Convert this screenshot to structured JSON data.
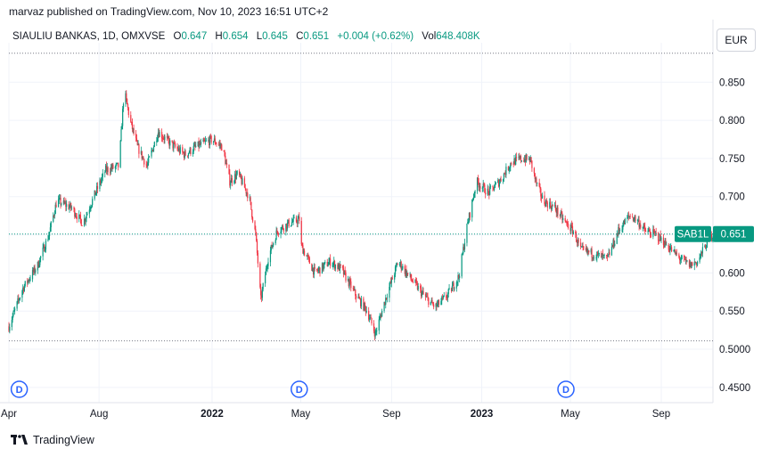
{
  "header": {
    "published_text": "marvaz published on TradingView.com, Nov 10, 2023 16:51 UTC+2"
  },
  "legend": {
    "symbol_text": "SIAULIU BANKAS, 1D, OMXVSE",
    "open_label": "O",
    "open": "0.647",
    "high_label": "H",
    "high": "0.654",
    "low_label": "L",
    "low": "0.645",
    "close_label": "C",
    "close": "0.651",
    "change": "+0.004 (+0.62%)",
    "vol_label": "Vol",
    "vol": "648.408K"
  },
  "currency_button": "EUR",
  "footer": {
    "brand": "TradingView"
  },
  "colors": {
    "up": "#089981",
    "down": "#f23645",
    "grid": "#f0f3fa",
    "dotted": "#787b86"
  },
  "chart_data": {
    "type": "candlestick",
    "symbol": "SAB1L",
    "y_ticks": [
      0.45,
      0.5,
      0.55,
      0.6,
      0.65,
      0.7,
      0.75,
      0.8,
      0.85
    ],
    "y_tick_labels": [
      "0.4500",
      "0.5000",
      "0.550",
      "0.600",
      "0.650",
      "0.700",
      "0.750",
      "0.800",
      "0.850"
    ],
    "ylim": [
      0.43,
      0.89
    ],
    "x_ticks": [
      {
        "label": "Apr",
        "date": "2021-04-01"
      },
      {
        "label": "Aug",
        "date": "2021-08-01"
      },
      {
        "label": "2022",
        "date": "2022-01-01"
      },
      {
        "label": "May",
        "date": "2022-05-01"
      },
      {
        "label": "Sep",
        "date": "2022-09-01"
      },
      {
        "label": "2023",
        "date": "2023-01-01"
      },
      {
        "label": "May",
        "date": "2023-05-01"
      },
      {
        "label": "Sep",
        "date": "2023-09-01"
      }
    ],
    "xlim": [
      "2021-04-01",
      "2023-11-10"
    ],
    "high_line": 0.888,
    "low_line": 0.511,
    "last_price": 0.651,
    "last_label": "SAB1L",
    "last_value_label": "0.651",
    "dividend_markers": [
      {
        "label": "D",
        "date": "2021-04-15"
      },
      {
        "label": "D",
        "date": "2022-04-29"
      },
      {
        "label": "D",
        "date": "2023-04-25"
      }
    ],
    "path": [
      [
        "2021-04-01",
        0.53
      ],
      [
        "2021-04-20",
        0.58
      ],
      [
        "2021-05-10",
        0.61
      ],
      [
        "2021-05-25",
        0.65
      ],
      [
        "2021-06-05",
        0.695
      ],
      [
        "2021-06-25",
        0.685
      ],
      [
        "2021-07-10",
        0.665
      ],
      [
        "2021-07-25",
        0.7
      ],
      [
        "2021-08-10",
        0.735
      ],
      [
        "2021-08-28",
        0.74
      ],
      [
        "2021-09-04",
        0.84
      ],
      [
        "2021-09-12",
        0.8
      ],
      [
        "2021-09-22",
        0.765
      ],
      [
        "2021-10-05",
        0.74
      ],
      [
        "2021-10-20",
        0.785
      ],
      [
        "2021-11-05",
        0.77
      ],
      [
        "2021-11-25",
        0.755
      ],
      [
        "2021-12-10",
        0.765
      ],
      [
        "2022-01-01",
        0.775
      ],
      [
        "2022-01-15",
        0.765
      ],
      [
        "2022-01-25",
        0.72
      ],
      [
        "2022-02-05",
        0.73
      ],
      [
        "2022-02-20",
        0.7
      ],
      [
        "2022-03-01",
        0.65
      ],
      [
        "2022-03-08",
        0.565
      ],
      [
        "2022-03-18",
        0.62
      ],
      [
        "2022-03-30",
        0.655
      ],
      [
        "2022-04-15",
        0.665
      ],
      [
        "2022-04-29",
        0.67
      ],
      [
        "2022-05-02",
        0.635
      ],
      [
        "2022-05-20",
        0.6
      ],
      [
        "2022-06-10",
        0.615
      ],
      [
        "2022-06-25",
        0.605
      ],
      [
        "2022-07-15",
        0.57
      ],
      [
        "2022-07-30",
        0.55
      ],
      [
        "2022-08-10",
        0.52
      ],
      [
        "2022-08-25",
        0.57
      ],
      [
        "2022-09-10",
        0.615
      ],
      [
        "2022-09-25",
        0.595
      ],
      [
        "2022-10-15",
        0.57
      ],
      [
        "2022-10-30",
        0.555
      ],
      [
        "2022-11-15",
        0.57
      ],
      [
        "2022-12-01",
        0.595
      ],
      [
        "2022-12-12",
        0.66
      ],
      [
        "2022-12-25",
        0.72
      ],
      [
        "2023-01-10",
        0.705
      ],
      [
        "2023-01-25",
        0.72
      ],
      [
        "2023-02-10",
        0.745
      ],
      [
        "2023-02-25",
        0.75
      ],
      [
        "2023-03-08",
        0.748
      ],
      [
        "2023-03-15",
        0.72
      ],
      [
        "2023-03-25",
        0.695
      ],
      [
        "2023-04-10",
        0.685
      ],
      [
        "2023-04-25",
        0.665
      ],
      [
        "2023-05-05",
        0.655
      ],
      [
        "2023-05-15",
        0.63
      ],
      [
        "2023-06-01",
        0.625
      ],
      [
        "2023-06-20",
        0.618
      ],
      [
        "2023-07-05",
        0.655
      ],
      [
        "2023-07-20",
        0.675
      ],
      [
        "2023-07-30",
        0.67
      ],
      [
        "2023-08-10",
        0.655
      ],
      [
        "2023-08-25",
        0.65
      ],
      [
        "2023-09-10",
        0.635
      ],
      [
        "2023-09-25",
        0.62
      ],
      [
        "2023-10-10",
        0.61
      ],
      [
        "2023-10-20",
        0.615
      ],
      [
        "2023-11-02",
        0.64
      ],
      [
        "2023-11-10",
        0.651
      ]
    ]
  }
}
